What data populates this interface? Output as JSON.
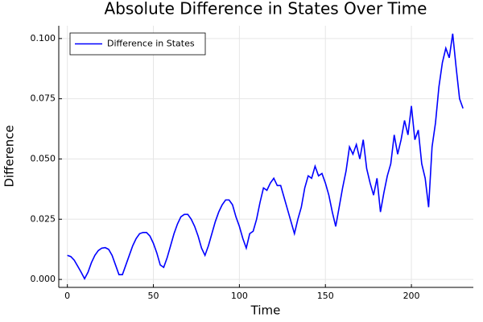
{
  "chart_data": {
    "type": "line",
    "title": "Absolute Difference in States Over Time",
    "xlabel": "Time",
    "ylabel": "Difference",
    "xlim": [
      -5,
      236
    ],
    "ylim": [
      -0.0033,
      0.1053
    ],
    "xticks": [
      0,
      50,
      100,
      150,
      200
    ],
    "yticks": [
      {
        "value": 0,
        "label": "0.000"
      },
      {
        "value": 0.025,
        "label": "0.025"
      },
      {
        "value": 0.05,
        "label": "0.050"
      },
      {
        "value": 0.075,
        "label": "0.075"
      },
      {
        "value": 0.1,
        "label": "0.100"
      }
    ],
    "grid": true,
    "legend": "top-left",
    "x": [
      0,
      2,
      4,
      6,
      8,
      10,
      12,
      14,
      16,
      18,
      20,
      22,
      24,
      26,
      28,
      30,
      32,
      34,
      36,
      38,
      40,
      42,
      44,
      46,
      48,
      50,
      52,
      54,
      56,
      58,
      60,
      62,
      64,
      66,
      68,
      70,
      72,
      74,
      76,
      78,
      80,
      82,
      84,
      86,
      88,
      90,
      92,
      94,
      96,
      98,
      100,
      102,
      104,
      106,
      108,
      110,
      112,
      114,
      116,
      118,
      120,
      122,
      124,
      126,
      128,
      130,
      132,
      134,
      136,
      138,
      140,
      142,
      144,
      146,
      148,
      150,
      152,
      154,
      156,
      158,
      160,
      162,
      164,
      166,
      168,
      170,
      172,
      174,
      176,
      178,
      180,
      182,
      184,
      186,
      188,
      190,
      192,
      194,
      196,
      198,
      200,
      202,
      204,
      206,
      208,
      210,
      212,
      214,
      216,
      218,
      220,
      222,
      224,
      226,
      228,
      230
    ],
    "series": [
      {
        "name": "Difference in States",
        "color": "#0000ff",
        "values": [
          0.01,
          0.0095,
          0.008,
          0.0055,
          0.003,
          0.0003,
          0.003,
          0.007,
          0.01,
          0.012,
          0.013,
          0.0132,
          0.0125,
          0.01,
          0.006,
          0.002,
          0.002,
          0.006,
          0.01,
          0.014,
          0.017,
          0.019,
          0.0195,
          0.0195,
          0.018,
          0.015,
          0.011,
          0.006,
          0.005,
          0.009,
          0.014,
          0.019,
          0.023,
          0.026,
          0.027,
          0.027,
          0.025,
          0.022,
          0.018,
          0.013,
          0.01,
          0.014,
          0.019,
          0.024,
          0.028,
          0.031,
          0.033,
          0.033,
          0.031,
          0.026,
          0.022,
          0.017,
          0.013,
          0.019,
          0.02,
          0.025,
          0.032,
          0.038,
          0.037,
          0.04,
          0.042,
          0.039,
          0.039,
          0.034,
          0.029,
          0.024,
          0.019,
          0.025,
          0.03,
          0.038,
          0.043,
          0.042,
          0.047,
          0.043,
          0.044,
          0.04,
          0.035,
          0.028,
          0.022,
          0.03,
          0.038,
          0.045,
          0.055,
          0.052,
          0.056,
          0.05,
          0.058,
          0.046,
          0.04,
          0.035,
          0.042,
          0.028,
          0.036,
          0.043,
          0.048,
          0.06,
          0.052,
          0.058,
          0.066,
          0.06,
          0.072,
          0.058,
          0.062,
          0.048,
          0.042,
          0.03,
          0.055,
          0.065,
          0.08,
          0.09,
          0.096,
          0.092,
          0.102,
          0.088,
          0.075,
          0.071
        ]
      }
    ]
  }
}
